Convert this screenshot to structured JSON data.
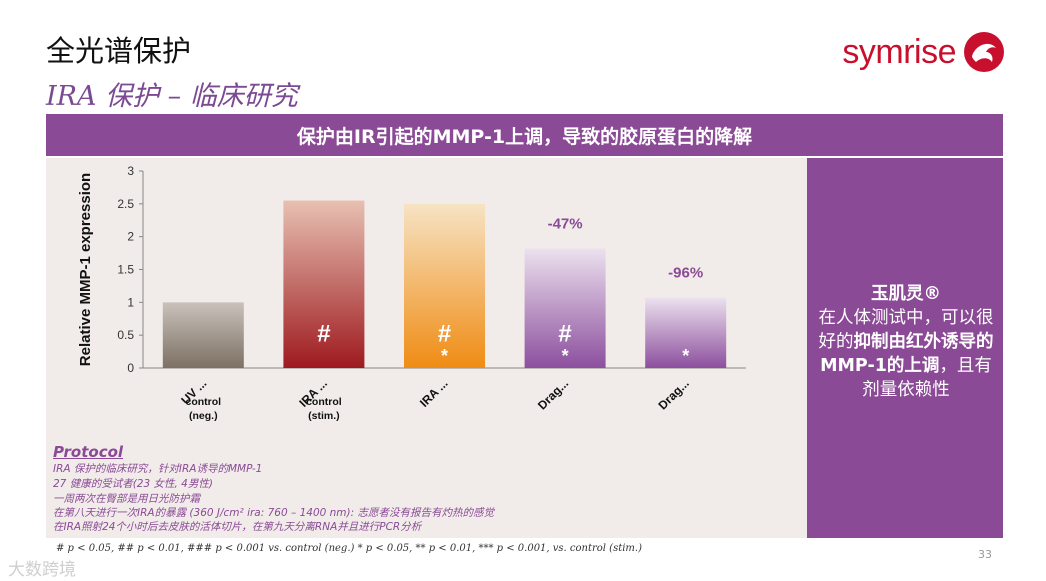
{
  "header": {
    "title": "全光谱保护",
    "subtitle": "IRA 保护 – 临床研究",
    "logo_text": "symrise"
  },
  "banner": {
    "text": "保护由IR引起的MMP-1上调，导致的胶原蛋白的降解"
  },
  "chart_data": {
    "type": "bar",
    "categories": [
      "UV ...",
      "IRA ...",
      "IRA ...",
      "Drag...",
      "Drag..."
    ],
    "values": [
      1.0,
      2.55,
      2.5,
      1.82,
      1.07
    ],
    "ylabel": "Relative MMP-1 expression",
    "ylim": [
      0,
      3
    ],
    "yticks": [
      "0",
      "0.5",
      "1",
      "1.5",
      "2",
      "2.5",
      "3"
    ],
    "bar_colors": [
      [
        "#c9c2bb",
        "#7d7064"
      ],
      [
        "#e7c0b2",
        "#9e1a1f"
      ],
      [
        "#f7e3c4",
        "#ef8c14"
      ],
      [
        "#ece1ee",
        "#8c4f9e"
      ],
      [
        "#ece1ee",
        "#8c4f9e"
      ]
    ],
    "pct_labels": [
      "",
      "",
      "",
      "-47%",
      "-96%"
    ],
    "hash_marks": [
      "",
      "#",
      "#",
      "#",
      ""
    ],
    "star_marks": [
      "",
      "",
      "*",
      "*",
      "*"
    ],
    "control_labels": [
      [
        "control",
        "(neg.)"
      ],
      [
        "control",
        "(stim.)"
      ],
      [
        "",
        ""
      ],
      [
        "",
        ""
      ],
      [
        "",
        ""
      ]
    ]
  },
  "right_panel": {
    "product": "玉肌灵®",
    "line_a": "在人体测试中，可以很好的",
    "line_b_bold": "抑制由红外诱导的MMP-1的上调",
    "line_c": "，且有剂量依赖性"
  },
  "protocol": {
    "heading": "Protocol",
    "lines": [
      "IRA 保护的临床研究，针对IRA诱导的MMP-1",
      "27 健康的受试者(23 女性, 4男性)",
      "一周两次在臀部是用日光防护霜",
      "在第八天进行一次IRA的暴露 (360 J/cm² ira: 760 – 1400 nm): 志愿者没有报告有灼热的感觉",
      "在IRA照射24个小时后去皮肤的活体切片，在第九天分离RNA并且进行PCR分析"
    ]
  },
  "footnote": "# p < 0.05, ## p < 0.01, ### p < 0.001 vs. control (neg.)     * p < 0.05, ** p < 0.01, *** p < 0.001, vs. control (stim.)",
  "page_number": "33",
  "watermark": "大数跨境"
}
